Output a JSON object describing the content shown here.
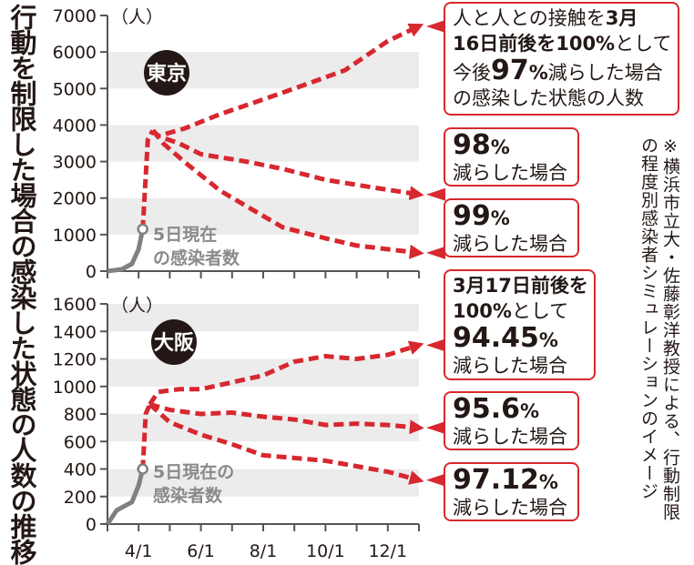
{
  "title": "行動を制限した場合の感染した状態の人数の推移",
  "note": "※横浜市立大・佐藤彰洋教授による、行動制限の程度別感染者シミュレーションのイメージ",
  "colors": {
    "projection": "#d7282f",
    "actual": "#808080",
    "band": "#ececec"
  },
  "chart_data": [
    {
      "type": "line",
      "panel": "東京",
      "ylabel": "（人）",
      "ylim": [
        0,
        7000
      ],
      "yticks": [
        "0",
        "1000",
        "2000",
        "3000",
        "4000",
        "5000",
        "6000",
        "7000"
      ],
      "xticks": [
        "4/1",
        "6/1",
        "8/1",
        "10/1",
        "12/1"
      ],
      "current_label": [
        "5日現在",
        "の感染者数"
      ],
      "actual": {
        "x": [
          "3/1",
          "3/15",
          "3/25",
          "4/1",
          "4/5"
        ],
        "y": [
          0,
          50,
          200,
          600,
          1150
        ]
      },
      "rise": {
        "x": [
          "4/5",
          "4/10",
          "4/15"
        ],
        "y": [
          1150,
          3600,
          3850
        ]
      },
      "series": [
        {
          "label_pct": "97%",
          "x": [
            "4/15",
            "4/20",
            "5/15",
            "6/20",
            "8/1",
            "9/1",
            "10/20",
            "12/1",
            "12/31"
          ],
          "y": [
            3850,
            3700,
            3900,
            4300,
            4700,
            5000,
            5500,
            6300,
            6700
          ]
        },
        {
          "label_pct": "98%",
          "x": [
            "4/15",
            "4/20",
            "5/10",
            "6/1",
            "7/15",
            "8/20",
            "10/1",
            "11/15",
            "12/31"
          ],
          "y": [
            3850,
            3700,
            3500,
            3200,
            3000,
            2800,
            2500,
            2300,
            2100
          ]
        },
        {
          "label_pct": "99%",
          "x": [
            "4/15",
            "4/25",
            "5/15",
            "6/20",
            "7/20",
            "8/20",
            "10/1",
            "11/1",
            "12/31"
          ],
          "y": [
            3850,
            3500,
            3000,
            2200,
            1700,
            1200,
            900,
            700,
            500
          ]
        }
      ],
      "callouts": [
        {
          "lines": [
            [
              {
                "t": "人と人との接触を"
              },
              {
                "t": "3月",
                "b": true
              }
            ],
            [
              {
                "t": "16日前後を100%",
                "b": true
              },
              {
                "t": "として"
              }
            ],
            [
              {
                "t": "今後"
              },
              {
                "t": "97",
                "big": true
              },
              {
                "t": "%",
                "b": true
              },
              {
                "t": "減らした場合"
              }
            ],
            [
              {
                "t": "の感染した状態の人数"
              }
            ]
          ]
        },
        {
          "num": "98",
          "pct": "%",
          "text": "減らした場合"
        },
        {
          "num": "99",
          "pct": "%",
          "text": "減らした場合"
        }
      ]
    },
    {
      "type": "line",
      "panel": "大阪",
      "ylabel": "（人）",
      "ylim": [
        0,
        1600
      ],
      "yticks": [
        "0",
        "200",
        "400",
        "600",
        "800",
        "1000",
        "1200",
        "1400",
        "1600"
      ],
      "xticks": [
        "4/1",
        "6/1",
        "8/1",
        "10/1",
        "12/1"
      ],
      "current_label": [
        "5日現在の",
        "感染者数"
      ],
      "actual": {
        "x": [
          "3/1",
          "3/10",
          "3/25",
          "4/1",
          "4/5"
        ],
        "y": [
          0,
          100,
          160,
          280,
          400
        ]
      },
      "rise": {
        "x": [
          "4/5",
          "4/8",
          "4/12"
        ],
        "y": [
          400,
          800,
          870
        ]
      },
      "series": [
        {
          "label_pct": "94.45%",
          "x": [
            "4/12",
            "4/20",
            "5/10",
            "6/1",
            "7/1",
            "8/1",
            "9/1",
            "10/1",
            "11/1",
            "12/1",
            "12/31"
          ],
          "y": [
            870,
            960,
            980,
            980,
            1030,
            1080,
            1180,
            1220,
            1200,
            1230,
            1300
          ]
        },
        {
          "label_pct": "95.6%",
          "x": [
            "4/12",
            "5/1",
            "6/1",
            "7/1",
            "8/1",
            "9/1",
            "10/1",
            "11/1",
            "12/1",
            "12/31"
          ],
          "y": [
            870,
            830,
            800,
            810,
            780,
            760,
            720,
            730,
            720,
            700
          ]
        },
        {
          "label_pct": "97.12%",
          "x": [
            "4/12",
            "5/1",
            "6/1",
            "7/1",
            "8/1",
            "9/1",
            "10/1",
            "11/1",
            "12/1",
            "12/31"
          ],
          "y": [
            870,
            740,
            650,
            580,
            500,
            480,
            460,
            420,
            380,
            320
          ]
        }
      ],
      "callouts": [
        {
          "lines": [
            [
              {
                "t": "3月17日前後を",
                "b": true
              }
            ],
            [
              {
                "t": "100%",
                "b": true
              },
              {
                "t": "として"
              }
            ],
            [
              {
                "t": "94.45",
                "big": true
              },
              {
                "t": "%",
                "b": true
              }
            ],
            [
              {
                "t": "減らした場合"
              }
            ]
          ]
        },
        {
          "num": "95.6",
          "pct": "%",
          "text": "減らした場合"
        },
        {
          "num": "97.12",
          "pct": "%",
          "text": "減らした場合"
        }
      ]
    }
  ]
}
